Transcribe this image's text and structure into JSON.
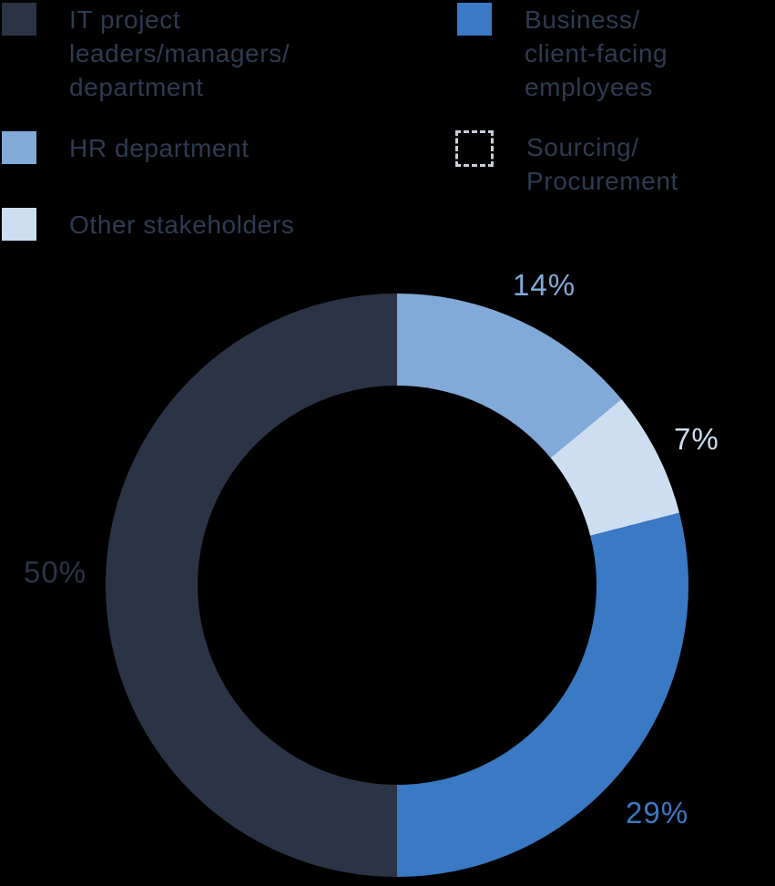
{
  "colors": {
    "background": "#000000",
    "legend_text": "#2F3B52",
    "navy": "#2B3447",
    "blue": "#3A79C3",
    "medium_blue": "#82AAD9",
    "light_blue": "#CDDEF0",
    "dashed_outline": "#C9CED8"
  },
  "legend": {
    "items": [
      {
        "label": "IT project\nleaders/managers/\ndepartment",
        "swatch_style": "solid",
        "swatch_color": "#2B3447"
      },
      {
        "label": "Business/\nclient-facing\nemployees",
        "swatch_style": "solid",
        "swatch_color": "#3A79C3"
      },
      {
        "label": "HR department",
        "swatch_style": "solid",
        "swatch_color": "#82AAD9"
      },
      {
        "label": "Sourcing/\nProcurement",
        "swatch_style": "dashed-outline",
        "swatch_color": "#C9CED8"
      },
      {
        "label": "Other stakeholders",
        "swatch_style": "solid",
        "swatch_color": "#CDDEF0"
      }
    ]
  },
  "chart_data": {
    "type": "pie",
    "subtype": "donut",
    "start_angle_deg": 0,
    "direction": "clockwise",
    "unit": "%",
    "legend_position": "top",
    "segments": [
      {
        "label": "HR department",
        "value": 14,
        "display": "14%",
        "color": "#82AAD9"
      },
      {
        "label": "Other stakeholders",
        "value": 7,
        "display": "7%",
        "color": "#CDDEF0"
      },
      {
        "label": "Business/client-facing employees",
        "value": 29,
        "display": "29%",
        "color": "#3A79C3"
      },
      {
        "label": "IT project leaders/managers/department",
        "value": 50,
        "display": "50%",
        "color": "#2B3447"
      },
      {
        "label": "Sourcing/Procurement",
        "value": 0,
        "display": "",
        "color": "#C9CED8"
      }
    ]
  }
}
